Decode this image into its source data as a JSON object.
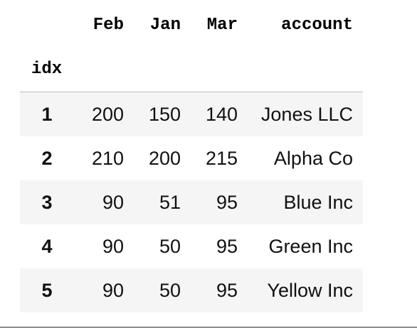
{
  "table": {
    "columns": [
      "Feb",
      "Jan",
      "Mar",
      "account"
    ],
    "index_name": "idx",
    "rows": [
      {
        "idx": "1",
        "Feb": "200",
        "Jan": "150",
        "Mar": "140",
        "account": "Jones LLC"
      },
      {
        "idx": "2",
        "Feb": "210",
        "Jan": "200",
        "Mar": "215",
        "account": "Alpha Co"
      },
      {
        "idx": "3",
        "Feb": "90",
        "Jan": "51",
        "Mar": "95",
        "account": "Blue Inc"
      },
      {
        "idx": "4",
        "Feb": "90",
        "Jan": "50",
        "Mar": "95",
        "account": "Green Inc"
      },
      {
        "idx": "5",
        "Feb": "90",
        "Jan": "50",
        "Mar": "95",
        "account": "Yellow Inc"
      }
    ]
  },
  "colors": {
    "stripe": "#f5f5f5",
    "rule": "#bdbdbd",
    "text": "#000000"
  }
}
